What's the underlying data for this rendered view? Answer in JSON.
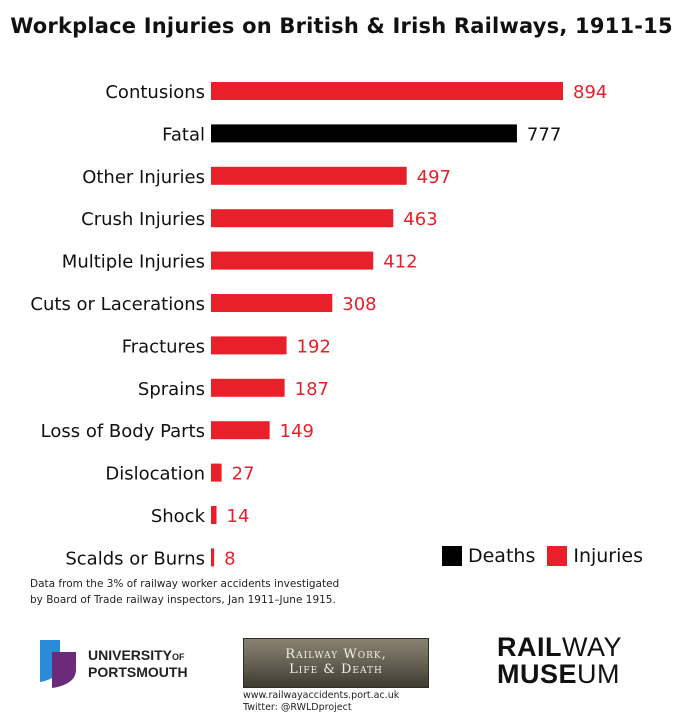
{
  "chart_data": {
    "type": "bar",
    "orientation": "horizontal",
    "title": "Workplace Injuries on British & Irish Railways, 1911-15",
    "categories": [
      "Contusions",
      "Fatal",
      "Other Injuries",
      "Crush Injuries",
      "Multiple Injuries",
      "Cuts or Lacerations",
      "Fractures",
      "Sprains",
      "Loss of Body Parts",
      "Dislocation",
      "Shock",
      "Scalds or Burns"
    ],
    "values": [
      894,
      777,
      497,
      463,
      412,
      308,
      192,
      187,
      149,
      27,
      14,
      8
    ],
    "kinds": [
      "Injuries",
      "Deaths",
      "Injuries",
      "Injuries",
      "Injuries",
      "Injuries",
      "Injuries",
      "Injuries",
      "Injuries",
      "Injuries",
      "Injuries",
      "Injuries"
    ],
    "legend": [
      {
        "name": "Deaths",
        "color": "#000000"
      },
      {
        "name": "Injuries",
        "color": "#e8202a"
      }
    ],
    "legend_position": "bottom-right",
    "xlim": [
      0,
      894
    ],
    "grid": false
  },
  "colors": {
    "deaths": "#000000",
    "injuries": "#e8202a",
    "label_injuries": "#e8202a",
    "label_deaths": "#111111"
  },
  "footnote": {
    "line1": "Data from the 3% of railway worker accidents investigated",
    "line2": "by Board of Trade railway inspectors, Jan 1911–June 1915."
  },
  "footer": {
    "uop_line1": "UNIVERSITY",
    "uop_of": "OF",
    "uop_line2": "PORTSMOUTH",
    "rwld_line1": "Railway Work,",
    "rwld_line2": "Life & Death",
    "rwld_url": "www.railwayaccidents.port.ac.uk",
    "rwld_twitter": "Twitter: @RWLDproject",
    "museum_rail": "RAIL",
    "museum_way": "WAY",
    "museum_muse": "MUSE",
    "museum_um": "UM"
  }
}
